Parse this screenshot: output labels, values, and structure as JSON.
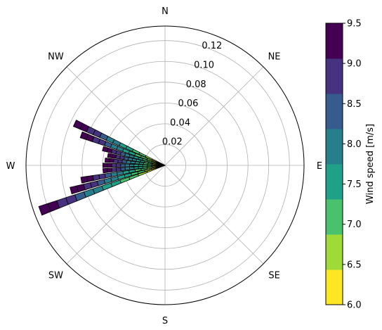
{
  "chart_data": {
    "type": "polar-bar",
    "subtype": "windrose",
    "title": "",
    "directions": [
      "N",
      "NE",
      "E",
      "SE",
      "S",
      "SW",
      "W",
      "NW"
    ],
    "radial_ticks": [
      "0.02",
      "0.04",
      "0.06",
      "0.08",
      "0.10",
      "0.12"
    ],
    "radial_tick_values": [
      0.02,
      0.04,
      0.06,
      0.08,
      0.1,
      0.12
    ],
    "rmax": 0.134,
    "colorbar": {
      "label": "Wind speed [m/s]",
      "ticks": [
        "6.0",
        "6.5",
        "7.0",
        "7.5",
        "8.0",
        "8.5",
        "9.0",
        "9.5"
      ],
      "bins": [
        6.0,
        6.25,
        6.5,
        6.75,
        7.0,
        7.25,
        7.5,
        7.75,
        8.0,
        8.25,
        8.5,
        8.75,
        9.0,
        9.25,
        9.5
      ],
      "min": 6.0,
      "max": 9.5,
      "colors": [
        "#fde725",
        "#a0da39",
        "#4ac16d",
        "#1fa187",
        "#277f8e",
        "#365c8d",
        "#46327e",
        "#440154"
      ]
    },
    "sectors": [
      {
        "direction_deg": 250,
        "value": 0.128
      },
      {
        "direction_deg": 255,
        "value": 0.094
      },
      {
        "direction_deg": 260,
        "value": 0.082
      },
      {
        "direction_deg": 265,
        "value": 0.06
      },
      {
        "direction_deg": 270,
        "value": 0.06
      },
      {
        "direction_deg": 275,
        "value": 0.058
      },
      {
        "direction_deg": 280,
        "value": 0.056
      },
      {
        "direction_deg": 285,
        "value": 0.062
      },
      {
        "direction_deg": 290,
        "value": 0.086
      },
      {
        "direction_deg": 295,
        "value": 0.096
      }
    ]
  }
}
